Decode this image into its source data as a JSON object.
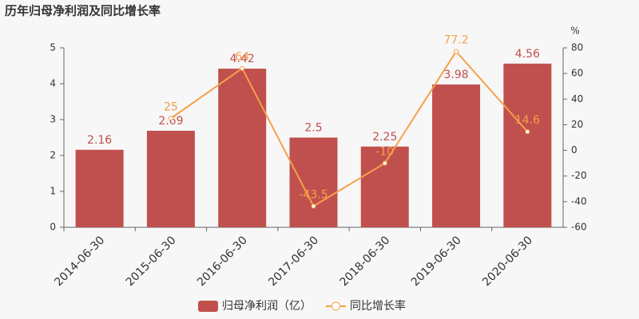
{
  "chart_data": {
    "type": "bar",
    "title": "历年归母净利润及同比增长率",
    "categories": [
      "2014-06-30",
      "2015-06-30",
      "2016-06-30",
      "2017-06-30",
      "2018-06-30",
      "2019-06-30",
      "2020-06-30"
    ],
    "series": [
      {
        "name": "归母净利润（亿）",
        "type": "bar",
        "color": "#c0504d",
        "values": [
          2.16,
          2.69,
          4.42,
          2.5,
          2.25,
          3.98,
          4.56
        ]
      },
      {
        "name": "同比增长率",
        "type": "line",
        "axis": "y2",
        "color": "#f5a04a",
        "values": [
          null,
          25,
          64,
          -43.5,
          -10,
          77.2,
          14.6
        ]
      }
    ],
    "ylim": [
      0,
      5
    ],
    "yticks": [
      0,
      1,
      2,
      3,
      4,
      5
    ],
    "y2lim": [
      -60,
      80
    ],
    "y2ticks": [
      -60,
      -40,
      -20,
      0,
      20,
      40,
      60,
      80
    ],
    "y2label": "%",
    "grid": false,
    "legend": "bottom"
  }
}
